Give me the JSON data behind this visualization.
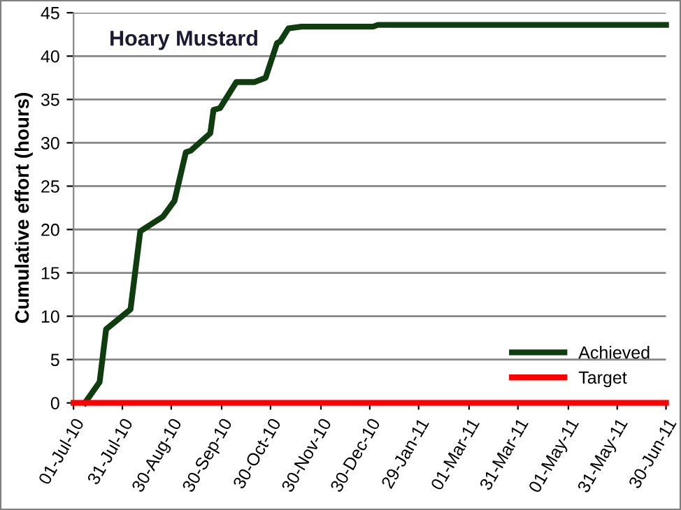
{
  "chart_data": {
    "type": "line",
    "ylabel": "Cumulative effort (hours)",
    "annotations": [
      "Hoary Mustard"
    ],
    "series": [
      {
        "name": "Achieved",
        "color": "#0f3d0f",
        "x": [
          "2010-07-08",
          "2010-07-17",
          "2010-07-21",
          "2010-08-05",
          "2010-08-11",
          "2010-08-25",
          "2010-09-01",
          "2010-09-08",
          "2010-09-11",
          "2010-09-23",
          "2010-09-25",
          "2010-09-29",
          "2010-10-09",
          "2010-10-20",
          "2010-10-27",
          "2010-11-03",
          "2010-11-05",
          "2010-11-10",
          "2010-11-18",
          "2011-01-01",
          "2011-01-04",
          "2011-06-30"
        ],
        "values": [
          0,
          2.4,
          8.5,
          10.8,
          19.8,
          21.5,
          23.3,
          28.9,
          29.1,
          31.1,
          33.8,
          34.0,
          37.0,
          37.0,
          37.5,
          41.5,
          41.7,
          43.2,
          43.4,
          43.4,
          43.6,
          43.6
        ]
      },
      {
        "name": "Target",
        "color": "#ff0000",
        "x": [
          "2010-07-01",
          "2011-06-30"
        ],
        "values": [
          0,
          0
        ]
      }
    ],
    "xlim": [
      "2010-07-01",
      "2011-06-30"
    ],
    "xticks": [
      {
        "value": "2010-07-01",
        "label": "01-Jul-10"
      },
      {
        "value": "2010-07-31",
        "label": "31-Jul-10"
      },
      {
        "value": "2010-08-30",
        "label": "30-Aug-10"
      },
      {
        "value": "2010-09-30",
        "label": "30-Sep-10"
      },
      {
        "value": "2010-10-30",
        "label": "30-Oct-10"
      },
      {
        "value": "2010-11-30",
        "label": "30-Nov-10"
      },
      {
        "value": "2010-12-30",
        "label": "30-Dec-10"
      },
      {
        "value": "2011-01-29",
        "label": "29-Jan-11"
      },
      {
        "value": "2011-03-01",
        "label": "01-Mar-11"
      },
      {
        "value": "2011-03-31",
        "label": "31-Mar-11"
      },
      {
        "value": "2011-05-01",
        "label": "01-May-11"
      },
      {
        "value": "2011-05-31",
        "label": "31-May-11"
      },
      {
        "value": "2011-06-30",
        "label": "30-Jun-11"
      }
    ],
    "ylim": [
      0,
      45
    ],
    "yticks": [
      0,
      5,
      10,
      15,
      20,
      25,
      30,
      35,
      40,
      45
    ],
    "grid": "y",
    "legend": "bottom right",
    "marker": "none",
    "line_style": "solid"
  }
}
